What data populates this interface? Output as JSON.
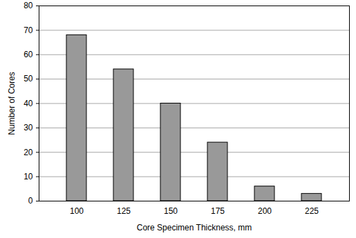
{
  "chart_data": {
    "type": "bar",
    "categories": [
      "100",
      "125",
      "150",
      "175",
      "200",
      "225"
    ],
    "values": [
      68,
      54,
      40,
      24,
      6,
      3
    ],
    "color": "#999999",
    "xlabel": "Core Specimen Thickness, mm",
    "ylabel": "Number of Cores",
    "ylim": [
      0,
      80
    ],
    "yticks": [
      0,
      10,
      20,
      30,
      40,
      50,
      60,
      70,
      80
    ],
    "grid": true
  }
}
